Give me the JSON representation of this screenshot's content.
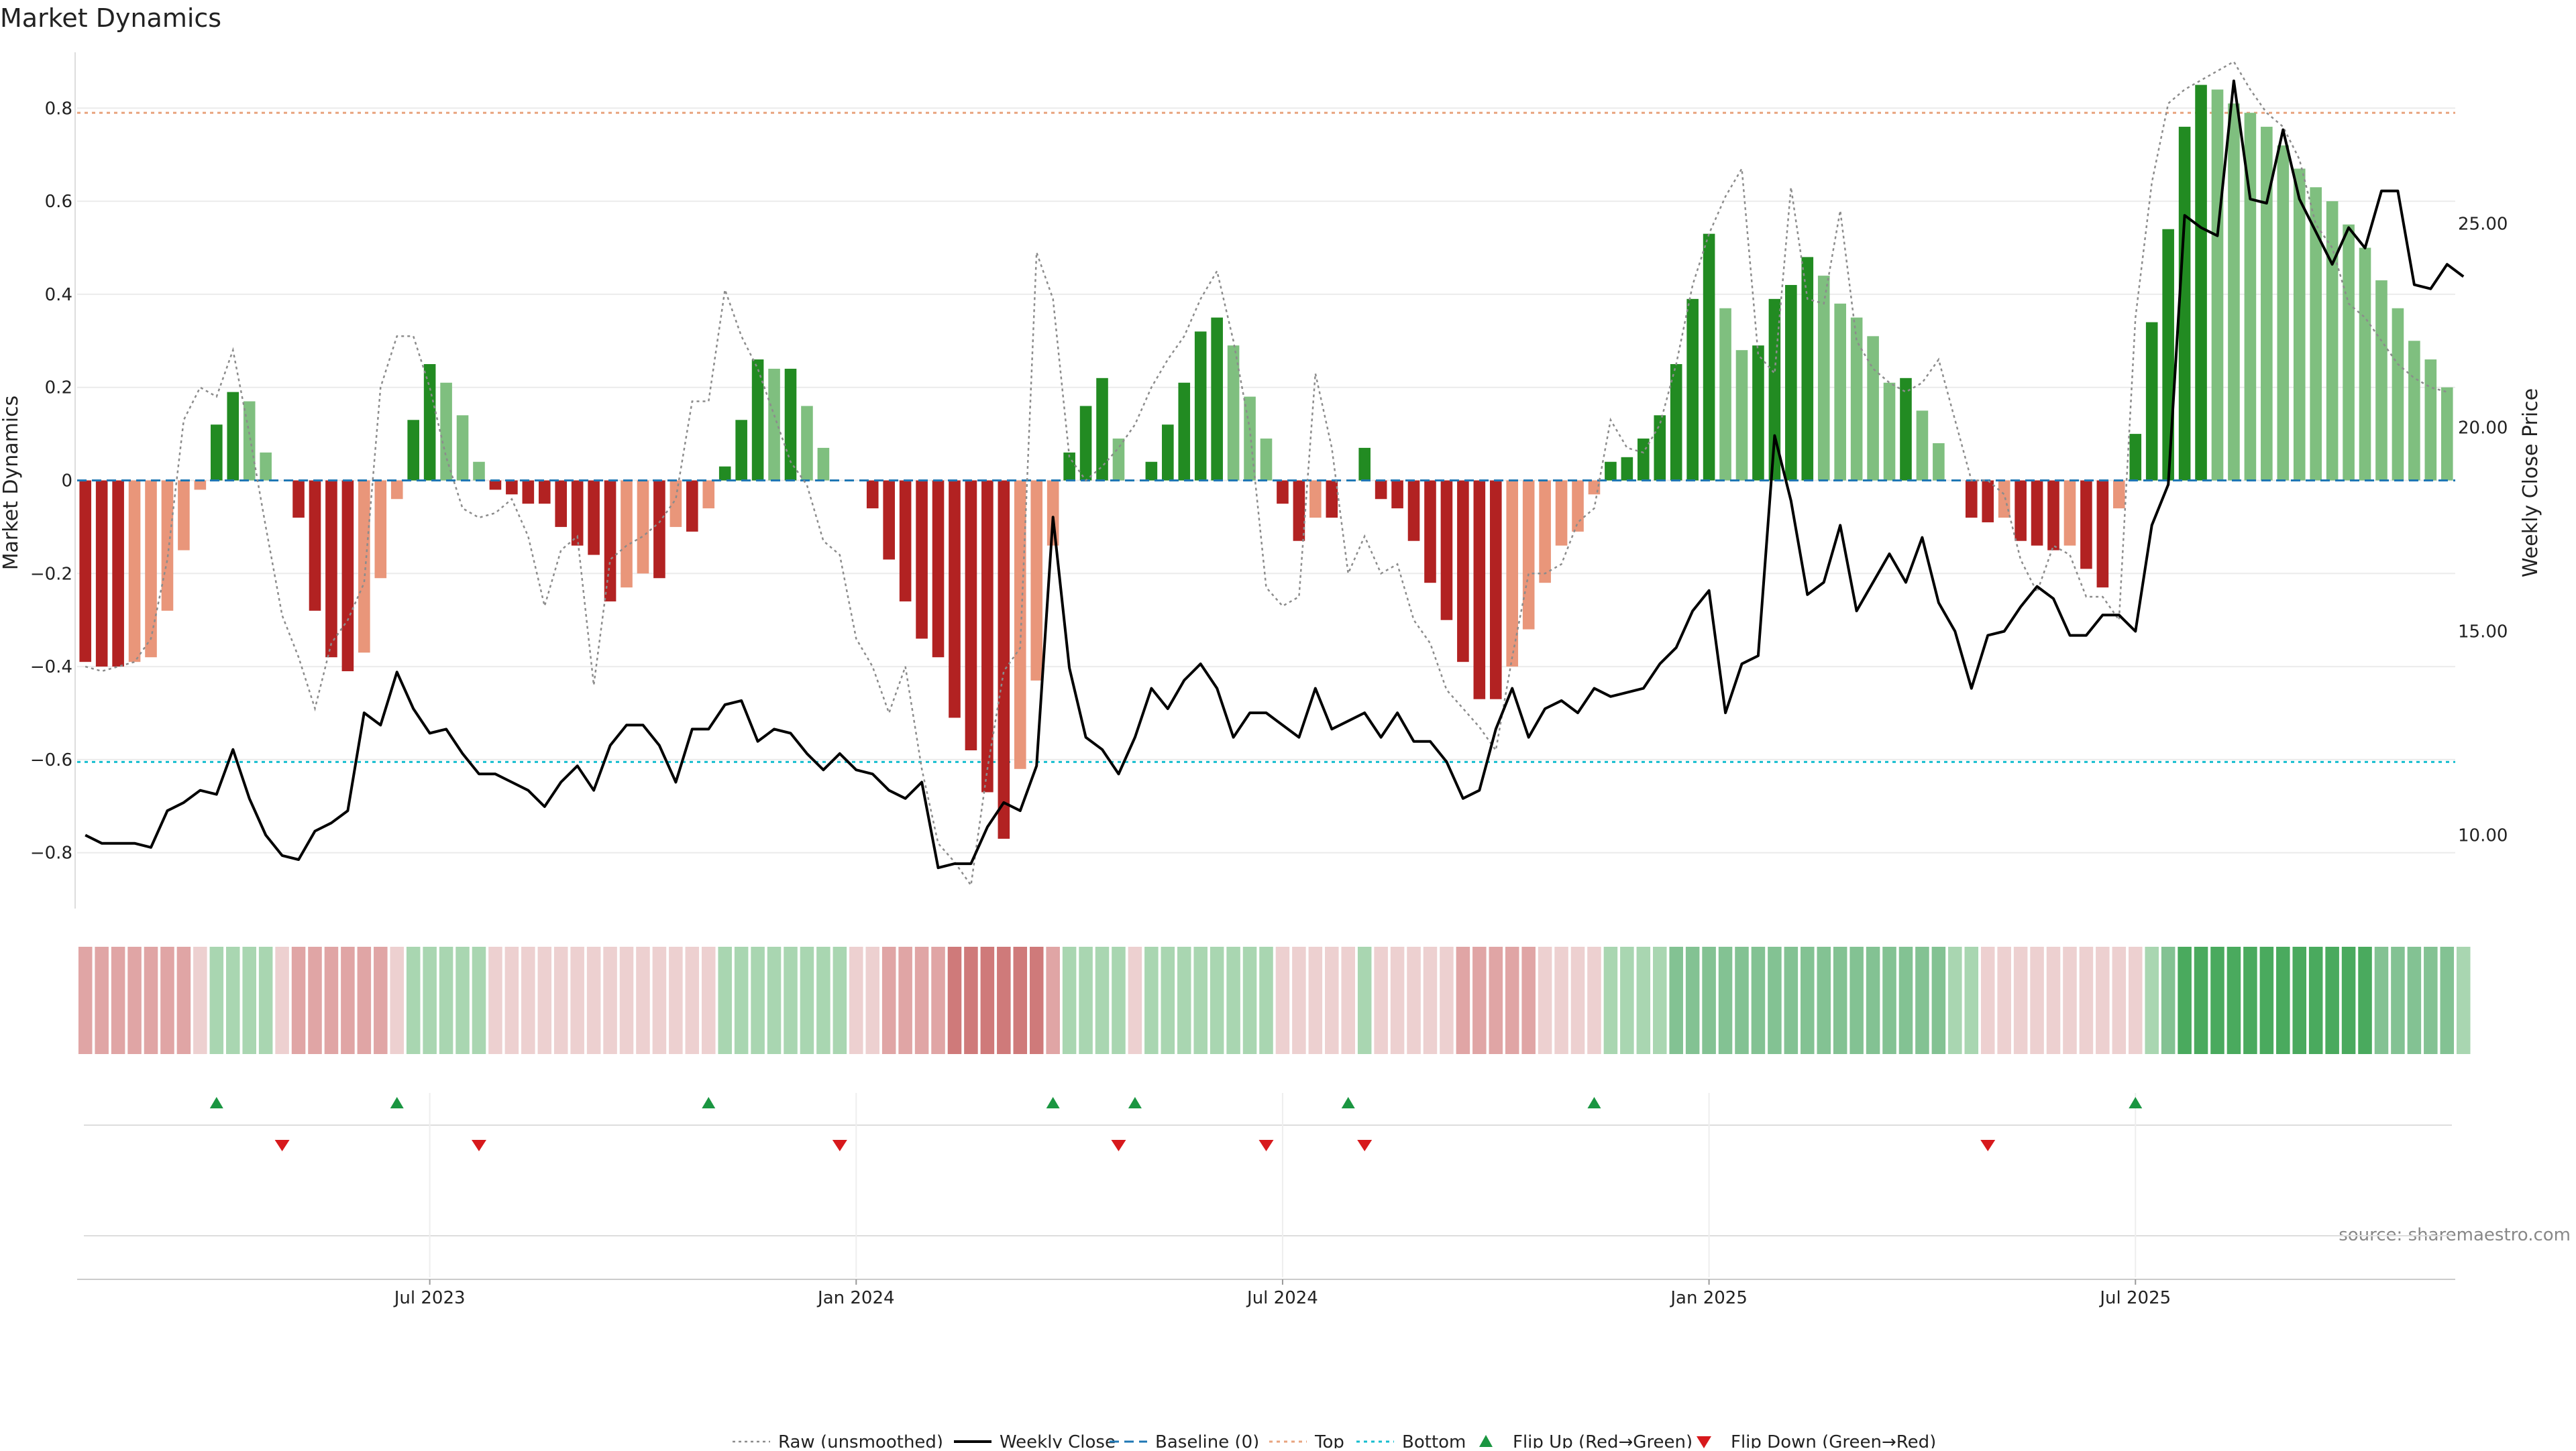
{
  "chart_data": {
    "type": "bar",
    "title": "Market Dynamics",
    "ylabel": "Market Dynamics",
    "y2label": "Weekly Close Price",
    "source": "source: sharemaestro.com",
    "ylim": [
      -0.92,
      0.92
    ],
    "y2lim": [
      8.2,
      29.2
    ],
    "yticks": [
      {
        "v": 0.8,
        "label": "0.8"
      },
      {
        "v": 0.6,
        "label": "0.6"
      },
      {
        "v": 0.4,
        "label": "0.4"
      },
      {
        "v": 0.2,
        "label": "0.2"
      },
      {
        "v": 0,
        "label": "0"
      },
      {
        "v": -0.2,
        "label": "−0.2"
      },
      {
        "v": -0.4,
        "label": "−0.4"
      },
      {
        "v": -0.6,
        "label": "−0.6"
      },
      {
        "v": -0.8,
        "label": "−0.8"
      }
    ],
    "y2ticks": [
      {
        "v": 25,
        "label": "25.00"
      },
      {
        "v": 20,
        "label": "20.00"
      },
      {
        "v": 15,
        "label": "15.00"
      },
      {
        "v": 10,
        "label": "10.00"
      }
    ],
    "xticks": [
      {
        "i": 21,
        "label": "Jul 2023"
      },
      {
        "i": 47,
        "label": "Jan 2024"
      },
      {
        "i": 73,
        "label": "Jul 2024"
      },
      {
        "i": 99,
        "label": "Jan 2025"
      },
      {
        "i": 125,
        "label": "Jul 2025"
      }
    ],
    "top_line": 0.79,
    "bottom_line": -0.605,
    "bar_values": [
      -0.39,
      -0.4,
      -0.4,
      -0.39,
      -0.38,
      -0.28,
      -0.15,
      -0.02,
      0.12,
      0.19,
      0.17,
      0.06,
      0,
      -0.08,
      -0.28,
      -0.38,
      -0.41,
      -0.37,
      -0.21,
      -0.04,
      0.13,
      0.25,
      0.21,
      0.14,
      0.04,
      -0.02,
      -0.03,
      -0.05,
      -0.05,
      -0.1,
      -0.14,
      -0.16,
      -0.26,
      -0.23,
      -0.2,
      -0.21,
      -0.1,
      -0.11,
      -0.06,
      0.03,
      0.13,
      0.26,
      0.24,
      0.24,
      0.16,
      0.07,
      0,
      0,
      -0.06,
      -0.17,
      -0.26,
      -0.34,
      -0.38,
      -0.51,
      -0.58,
      -0.67,
      -0.77,
      -0.62,
      -0.43,
      -0.14,
      0.06,
      0.16,
      0.22,
      0.09,
      0,
      0.04,
      0.12,
      0.21,
      0.32,
      0.35,
      0.29,
      0.18,
      0.09,
      -0.05,
      -0.13,
      -0.08,
      -0.08,
      0,
      0.07,
      -0.04,
      -0.06,
      -0.13,
      -0.22,
      -0.3,
      -0.39,
      -0.47,
      -0.47,
      -0.4,
      -0.32,
      -0.22,
      -0.14,
      -0.11,
      -0.03,
      0.04,
      0.05,
      0.09,
      0.14,
      0.25,
      0.39,
      0.53,
      0.37,
      0.28,
      0.29,
      0.39,
      0.42,
      0.48,
      0.44,
      0.38,
      0.35,
      0.31,
      0.21,
      0.22,
      0.15,
      0.08,
      0,
      -0.08,
      -0.09,
      -0.08,
      -0.13,
      -0.14,
      -0.15,
      -0.14,
      -0.19,
      -0.23,
      -0.06,
      0.1,
      0.34,
      0.54,
      0.76,
      0.85,
      0.84,
      0.81,
      0.79,
      0.76,
      0.72,
      0.67,
      0.63,
      0.6,
      0.55,
      0.5,
      0.43,
      0.37,
      0.3,
      0.26,
      0.2
    ],
    "raw_values": [
      -0.4,
      -0.41,
      -0.4,
      -0.39,
      -0.34,
      -0.17,
      0.13,
      0.2,
      0.18,
      0.28,
      0.1,
      -0.1,
      -0.29,
      -0.38,
      -0.49,
      -0.35,
      -0.3,
      -0.22,
      0.2,
      0.31,
      0.31,
      0.2,
      0.05,
      -0.06,
      -0.08,
      -0.07,
      -0.04,
      -0.12,
      -0.27,
      -0.15,
      -0.12,
      -0.44,
      -0.17,
      -0.14,
      -0.12,
      -0.09,
      -0.04,
      0.17,
      0.17,
      0.41,
      0.31,
      0.24,
      0.14,
      0.04,
      -0.01,
      -0.13,
      -0.16,
      -0.34,
      -0.4,
      -0.5,
      -0.4,
      -0.62,
      -0.78,
      -0.82,
      -0.87,
      -0.62,
      -0.41,
      -0.36,
      0.49,
      0.39,
      0.05,
      0,
      0.03,
      0.07,
      0.12,
      0.2,
      0.26,
      0.31,
      0.39,
      0.45,
      0.3,
      0.11,
      -0.23,
      -0.27,
      -0.25,
      0.23,
      0.07,
      -0.2,
      -0.12,
      -0.2,
      -0.18,
      -0.3,
      -0.35,
      -0.45,
      -0.49,
      -0.53,
      -0.58,
      -0.38,
      -0.2,
      -0.2,
      -0.18,
      -0.09,
      -0.06,
      0.13,
      0.07,
      0.06,
      0.12,
      0.25,
      0.42,
      0.53,
      0.61,
      0.67,
      0.27,
      0.23,
      0.63,
      0.39,
      0.38,
      0.58,
      0.3,
      0.24,
      0.21,
      0.19,
      0.21,
      0.26,
      0.13,
      0.0,
      0.0,
      -0.03,
      -0.17,
      -0.24,
      -0.14,
      -0.16,
      -0.25,
      -0.25,
      -0.3,
      0.35,
      0.64,
      0.81,
      0.84,
      0.86,
      0.88,
      0.9,
      0.84,
      0.79,
      0.76,
      0.69,
      0.55,
      0.5,
      0.38,
      0.35,
      0.3,
      0.25,
      0.22,
      0.2,
      0.19
    ],
    "close_values": [
      10.0,
      9.8,
      9.8,
      9.8,
      9.7,
      10.6,
      10.8,
      11.1,
      11.0,
      12.1,
      10.9,
      10.0,
      9.5,
      9.4,
      10.1,
      10.3,
      10.6,
      13.0,
      12.7,
      14.0,
      13.1,
      12.5,
      12.6,
      12.0,
      11.5,
      11.5,
      11.3,
      11.1,
      10.7,
      11.3,
      11.7,
      11.1,
      12.2,
      12.7,
      12.7,
      12.2,
      11.3,
      12.6,
      12.6,
      13.2,
      13.3,
      12.3,
      12.6,
      12.5,
      12.0,
      11.6,
      12.0,
      11.6,
      11.5,
      11.1,
      10.9,
      11.3,
      9.2,
      9.3,
      9.3,
      10.2,
      10.8,
      10.6,
      11.7,
      17.8,
      14.1,
      12.4,
      12.1,
      11.5,
      12.4,
      13.6,
      13.1,
      13.8,
      14.2,
      13.6,
      12.4,
      13.0,
      13.0,
      12.7,
      12.4,
      13.6,
      12.6,
      12.8,
      13.0,
      12.4,
      13.0,
      12.3,
      12.3,
      11.8,
      10.9,
      11.1,
      12.6,
      13.6,
      12.4,
      13.1,
      13.3,
      13.0,
      13.6,
      13.4,
      13.5,
      13.6,
      14.2,
      14.6,
      15.5,
      16.0,
      13.0,
      14.2,
      14.4,
      19.8,
      18.2,
      15.9,
      16.2,
      17.6,
      15.5,
      16.2,
      16.9,
      16.2,
      17.3,
      15.7,
      15.0,
      13.6,
      14.9,
      15.0,
      15.6,
      16.1,
      15.8,
      14.9,
      14.9,
      15.4,
      15.4,
      15.0,
      17.6,
      18.6,
      25.2,
      24.9,
      24.7,
      28.5,
      25.6,
      25.5,
      27.3,
      25.6,
      24.8,
      24.0,
      24.9,
      24.4,
      25.8,
      25.8,
      23.5,
      23.4,
      24.0,
      23.7
    ],
    "heatmap_levels": [
      -2,
      -2,
      -2,
      -2,
      -2,
      -2,
      -2,
      -1,
      1,
      1,
      1,
      1,
      -1,
      -2,
      -2,
      -2,
      -2,
      -2,
      -2,
      -1,
      1,
      1,
      1,
      1,
      1,
      -1,
      -1,
      -1,
      -1,
      -1,
      -1,
      -1,
      -1,
      -1,
      -1,
      -1,
      -1,
      -1,
      -1,
      1,
      1,
      1,
      1,
      1,
      1,
      1,
      1,
      -1,
      -1,
      -2,
      -2,
      -2,
      -2,
      -3,
      -3,
      -3,
      -3,
      -3,
      -3,
      -2,
      1,
      1,
      1,
      1,
      -1,
      1,
      1,
      1,
      1,
      1,
      1,
      1,
      1,
      -1,
      -1,
      -1,
      -1,
      -1,
      1,
      -1,
      -1,
      -1,
      -1,
      -1,
      -2,
      -2,
      -2,
      -2,
      -2,
      -1,
      -1,
      -1,
      -1,
      1,
      1,
      1,
      1,
      2,
      2,
      2,
      2,
      2,
      2,
      2,
      2,
      2,
      2,
      2,
      2,
      2,
      2,
      2,
      2,
      2,
      1,
      1,
      -1,
      -1,
      -1,
      -1,
      -1,
      -1,
      -1,
      -1,
      -1,
      -1,
      1,
      2,
      3,
      3,
      3,
      3,
      3,
      3,
      3,
      3,
      3,
      3,
      3,
      3,
      2,
      2,
      2,
      2,
      2,
      1
    ],
    "flip_up": [
      8,
      19,
      38,
      59,
      64,
      77,
      92,
      125
    ],
    "flip_down": [
      12,
      24,
      46,
      63,
      72,
      78,
      116
    ],
    "legend": [
      {
        "key": "raw",
        "label": "Raw (unsmoothed)"
      },
      {
        "key": "close",
        "label": "Weekly Close"
      },
      {
        "key": "baseline",
        "label": "Baseline (0)"
      },
      {
        "key": "top",
        "label": "Top"
      },
      {
        "key": "bottom",
        "label": "Bottom"
      },
      {
        "key": "flipup",
        "label": "Flip Up (Red→Green)"
      },
      {
        "key": "flipdown",
        "label": "Flip Down (Green→Red)"
      }
    ],
    "colors": {
      "pos_strong": "#228b22",
      "pos_weak": "#7fbf7f",
      "neg_strong": "#b22222",
      "neg_weak": "#e9967a",
      "close_line": "#000000",
      "raw_line": "#8c8c8c",
      "baseline": "#1f77b4",
      "top": "#e8a47f",
      "bottom": "#17becf",
      "flip_up": "#1a9641",
      "flip_down": "#d7191c",
      "heat_green": [
        "#c6e3cc",
        "#a9d6b1",
        "#83c293",
        "#4aaa5e"
      ],
      "heat_red": [
        "#edd0d0",
        "#e0a5a5",
        "#cf7a7a"
      ]
    }
  }
}
